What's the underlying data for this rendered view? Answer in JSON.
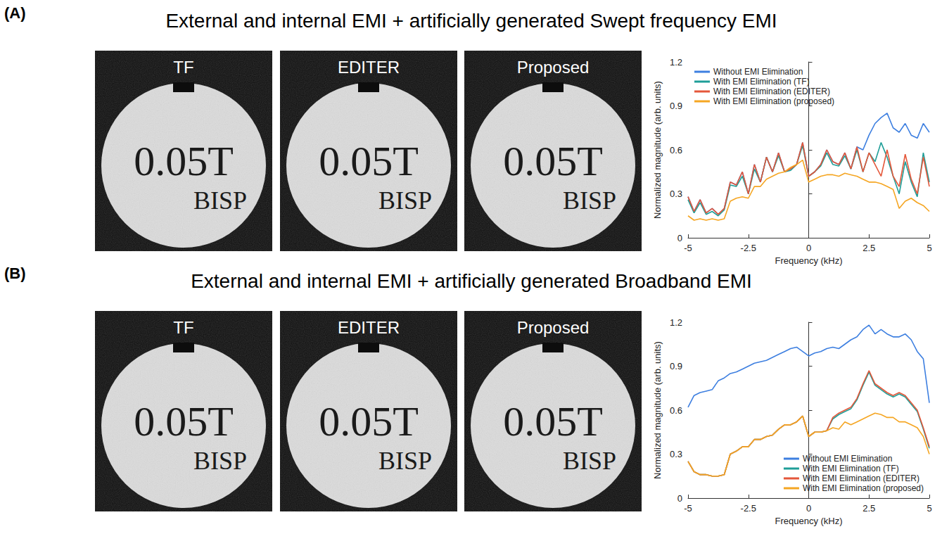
{
  "figure": {
    "panels": [
      {
        "letter": "(A)",
        "title": "External and internal EMI + artificially generated Swept frequency EMI",
        "images": [
          {
            "label": "TF",
            "phantom_text": [
              "0.05T",
              "BISP"
            ]
          },
          {
            "label": "EDITER",
            "phantom_text": [
              "0.05T",
              "BISP"
            ]
          },
          {
            "label": "Proposed",
            "phantom_text": [
              "0.05T",
              "BISP"
            ]
          }
        ]
      },
      {
        "letter": "(B)",
        "title": "External and internal EMI + artificially generated Broadband EMI",
        "images": [
          {
            "label": "TF",
            "phantom_text": [
              "0.05T",
              "BISP"
            ]
          },
          {
            "label": "EDITER",
            "phantom_text": [
              "0.05T",
              "BISP"
            ]
          },
          {
            "label": "Proposed",
            "phantom_text": [
              "0.05T",
              "BISP"
            ]
          }
        ]
      }
    ]
  },
  "chart_data": [
    {
      "type": "line",
      "xlabel": "Frequency (kHz)",
      "ylabel": "Normalized magnitude (arb. units)",
      "x": [
        -5,
        -4.75,
        -4.5,
        -4.25,
        -4,
        -3.75,
        -3.5,
        -3.25,
        -3,
        -2.75,
        -2.5,
        -2.25,
        -2,
        -1.75,
        -1.5,
        -1.25,
        -1,
        -0.75,
        -0.5,
        -0.25,
        0,
        0.25,
        0.5,
        0.75,
        1,
        1.25,
        1.5,
        1.75,
        2,
        2.25,
        2.5,
        2.75,
        3,
        3.25,
        3.5,
        3.75,
        4,
        4.25,
        4.5,
        4.75,
        5
      ],
      "xlim": [
        -5,
        5
      ],
      "xticks": [
        -5,
        -2.5,
        0,
        2.5,
        5
      ],
      "ylim": [
        0,
        1.2
      ],
      "yticks": [
        0,
        0.3,
        0.6,
        0.9,
        1.2
      ],
      "grid": false,
      "legend": "upper left",
      "series": [
        {
          "name": "Without EMI Elimination",
          "color": "#3d7fe0",
          "values": [
            0.28,
            0.18,
            0.26,
            0.17,
            0.2,
            0.16,
            0.2,
            0.38,
            0.36,
            0.45,
            0.3,
            0.5,
            0.38,
            0.55,
            0.45,
            0.58,
            0.45,
            0.47,
            0.5,
            0.65,
            0.42,
            0.45,
            0.5,
            0.6,
            0.52,
            0.5,
            0.58,
            0.47,
            0.62,
            0.6,
            0.7,
            0.78,
            0.82,
            0.85,
            0.75,
            0.72,
            0.78,
            0.7,
            0.68,
            0.78,
            0.72
          ]
        },
        {
          "name": "With EMI Elimination (TF)",
          "color": "#1f9e98",
          "values": [
            0.26,
            0.17,
            0.24,
            0.16,
            0.18,
            0.15,
            0.19,
            0.36,
            0.35,
            0.42,
            0.3,
            0.47,
            0.38,
            0.55,
            0.45,
            0.56,
            0.45,
            0.46,
            0.5,
            0.63,
            0.42,
            0.45,
            0.49,
            0.58,
            0.5,
            0.49,
            0.56,
            0.47,
            0.6,
            0.45,
            0.58,
            0.52,
            0.65,
            0.55,
            0.42,
            0.3,
            0.52,
            0.38,
            0.28,
            0.58,
            0.38
          ]
        },
        {
          "name": "With EMI Elimination (EDITER)",
          "color": "#e4573a",
          "values": [
            0.28,
            0.18,
            0.26,
            0.17,
            0.2,
            0.16,
            0.2,
            0.38,
            0.36,
            0.45,
            0.3,
            0.5,
            0.38,
            0.55,
            0.45,
            0.58,
            0.45,
            0.47,
            0.5,
            0.65,
            0.42,
            0.45,
            0.5,
            0.6,
            0.52,
            0.5,
            0.58,
            0.47,
            0.62,
            0.45,
            0.58,
            0.5,
            0.42,
            0.6,
            0.42,
            0.35,
            0.57,
            0.4,
            0.3,
            0.55,
            0.35
          ]
        },
        {
          "name": "With EMI Elimination (proposed)",
          "color": "#f5a623",
          "values": [
            0.15,
            0.12,
            0.13,
            0.12,
            0.13,
            0.12,
            0.13,
            0.25,
            0.27,
            0.28,
            0.27,
            0.35,
            0.35,
            0.4,
            0.42,
            0.44,
            0.45,
            0.48,
            0.5,
            0.53,
            0.38,
            0.4,
            0.42,
            0.43,
            0.43,
            0.42,
            0.44,
            0.43,
            0.42,
            0.4,
            0.38,
            0.38,
            0.37,
            0.35,
            0.33,
            0.2,
            0.25,
            0.27,
            0.24,
            0.22,
            0.18
          ]
        }
      ]
    },
    {
      "type": "line",
      "xlabel": "Frequency (kHz)",
      "ylabel": "Normalized magnitude (arb. units)",
      "x": [
        -5,
        -4.75,
        -4.5,
        -4.25,
        -4,
        -3.75,
        -3.5,
        -3.25,
        -3,
        -2.75,
        -2.5,
        -2.25,
        -2,
        -1.75,
        -1.5,
        -1.25,
        -1,
        -0.75,
        -0.5,
        -0.25,
        0,
        0.25,
        0.5,
        0.75,
        1,
        1.25,
        1.5,
        1.75,
        2,
        2.25,
        2.5,
        2.75,
        3,
        3.25,
        3.5,
        3.75,
        4,
        4.25,
        4.5,
        4.75,
        5
      ],
      "xlim": [
        -5,
        5
      ],
      "xticks": [
        -5,
        -2.5,
        0,
        2.5,
        5
      ],
      "ylim": [
        0,
        1.2
      ],
      "yticks": [
        0,
        0.3,
        0.6,
        0.9,
        1.2
      ],
      "grid": false,
      "legend": "lower right",
      "series": [
        {
          "name": "Without EMI Elimination",
          "color": "#3d7fe0",
          "values": [
            0.62,
            0.7,
            0.72,
            0.73,
            0.74,
            0.8,
            0.82,
            0.85,
            0.86,
            0.88,
            0.9,
            0.92,
            0.93,
            0.94,
            0.96,
            0.98,
            1.0,
            1.02,
            1.03,
            1.0,
            0.97,
            0.99,
            1.0,
            1.02,
            1.03,
            1.02,
            1.05,
            1.08,
            1.1,
            1.15,
            1.18,
            1.12,
            1.15,
            1.12,
            1.1,
            1.1,
            1.12,
            1.08,
            1.0,
            0.95,
            0.65
          ]
        },
        {
          "name": "With EMI Elimination (TF)",
          "color": "#1f9e98",
          "values": [
            0.25,
            0.18,
            0.16,
            0.16,
            0.15,
            0.15,
            0.16,
            0.3,
            0.32,
            0.35,
            0.35,
            0.4,
            0.4,
            0.42,
            0.43,
            0.47,
            0.5,
            0.5,
            0.52,
            0.56,
            0.42,
            0.45,
            0.45,
            0.46,
            0.54,
            0.57,
            0.59,
            0.61,
            0.67,
            0.77,
            0.86,
            0.77,
            0.74,
            0.71,
            0.69,
            0.71,
            0.69,
            0.64,
            0.59,
            0.47,
            0.34
          ]
        },
        {
          "name": "With EMI Elimination (EDITER)",
          "color": "#e4573a",
          "values": [
            0.25,
            0.18,
            0.16,
            0.16,
            0.15,
            0.15,
            0.16,
            0.3,
            0.32,
            0.35,
            0.35,
            0.4,
            0.4,
            0.42,
            0.43,
            0.47,
            0.5,
            0.5,
            0.52,
            0.56,
            0.42,
            0.45,
            0.45,
            0.46,
            0.55,
            0.58,
            0.6,
            0.62,
            0.68,
            0.78,
            0.87,
            0.78,
            0.75,
            0.72,
            0.7,
            0.72,
            0.7,
            0.65,
            0.6,
            0.48,
            0.35
          ]
        },
        {
          "name": "With EMI Elimination (proposed)",
          "color": "#f5a623",
          "values": [
            0.25,
            0.18,
            0.16,
            0.16,
            0.15,
            0.15,
            0.16,
            0.3,
            0.32,
            0.35,
            0.35,
            0.4,
            0.4,
            0.42,
            0.43,
            0.47,
            0.5,
            0.5,
            0.52,
            0.56,
            0.42,
            0.45,
            0.45,
            0.46,
            0.48,
            0.47,
            0.52,
            0.5,
            0.52,
            0.54,
            0.56,
            0.58,
            0.57,
            0.55,
            0.55,
            0.52,
            0.52,
            0.5,
            0.48,
            0.42,
            0.3
          ]
        }
      ]
    }
  ]
}
